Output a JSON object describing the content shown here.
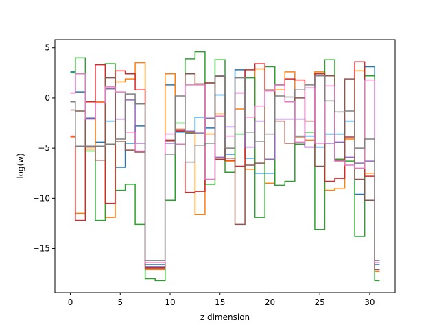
{
  "chart_data": {
    "type": "line",
    "title": "",
    "xlabel": "z dimension",
    "ylabel": "log(w)",
    "xlim": [
      -1.55,
      32.55
    ],
    "ylim": [
      -19.4,
      5.8
    ],
    "xticks": [
      0,
      5,
      10,
      15,
      20,
      25,
      30
    ],
    "yticks": [
      5,
      0,
      -5,
      -10,
      -15
    ],
    "ytick_labels": [
      "5",
      "0",
      "−5",
      "−10",
      "−15"
    ],
    "grid": false,
    "legend": "none",
    "step_style": "mid",
    "x": [
      0,
      1,
      2,
      3,
      4,
      5,
      6,
      7,
      8,
      9,
      10,
      11,
      12,
      13,
      14,
      15,
      16,
      17,
      18,
      19,
      20,
      21,
      22,
      23,
      24,
      25,
      26,
      27,
      28,
      29,
      30,
      31
    ],
    "series": [
      {
        "color": "#1f77b4",
        "values": [
          2.6,
          0.6,
          -2.0,
          -4.4,
          -2.3,
          -6.9,
          -4.5,
          -2.8,
          -16.6,
          -16.6,
          1.3,
          -3.4,
          -3.5,
          -1.9,
          -3.0,
          0.3,
          -5.6,
          2.8,
          -6.0,
          -7.5,
          -7.5,
          1.3,
          -0.4,
          -3.8,
          -3.8,
          -4.9,
          -3.6,
          -3.6,
          -2.3,
          -9.6,
          3.1,
          -16.6
        ]
      },
      {
        "color": "#ff7f0e",
        "values": [
          -3.9,
          -11.5,
          -5.1,
          -0.4,
          -11.9,
          1.6,
          1.9,
          3.5,
          -17.1,
          -17.1,
          2.4,
          -3.1,
          -3.4,
          -11.6,
          -3.6,
          -1.6,
          -6.3,
          -1.1,
          -7.1,
          2.9,
          -8.5,
          0.8,
          2.6,
          -3.9,
          -4.2,
          2.6,
          -9.2,
          -9.0,
          -4.1,
          2.7,
          -7.5,
          -17.3
        ]
      },
      {
        "color": "#2ca02c",
        "values": [
          2.5,
          4.0,
          -5.3,
          -12.2,
          3.4,
          -9.2,
          -8.6,
          -12.6,
          -18.0,
          -18.2,
          -10.2,
          -2.5,
          3.9,
          4.6,
          -8.6,
          3.8,
          -7.4,
          -3.6,
          2.0,
          -11.9,
          3.1,
          -8.7,
          -8.3,
          -4.6,
          -3.4,
          -13.1,
          3.8,
          -6.1,
          -6.3,
          -13.8,
          2.2,
          -18.2
        ]
      },
      {
        "color": "#d62728",
        "values": [
          -3.8,
          -12.2,
          -0.4,
          3.3,
          -10.5,
          2.7,
          2.4,
          0.8,
          -16.9,
          -16.9,
          -4.2,
          -3.3,
          -9.4,
          -9.3,
          1.5,
          -6.1,
          -6.2,
          -6.8,
          2.8,
          3.4,
          0.8,
          1.3,
          1.9,
          1.8,
          -4.9,
          2.4,
          -8.3,
          -8.0,
          -3.9,
          3.6,
          -7.8,
          -17.1
        ]
      },
      {
        "color": "#9467bd",
        "values": [
          0.5,
          2.4,
          -2.1,
          -0.5,
          0.9,
          -2.1,
          -0.2,
          -4.5,
          -16.8,
          -16.8,
          -4.5,
          -3.2,
          -3.3,
          -3.5,
          -2.0,
          -5.9,
          -2.9,
          0.5,
          -4.9,
          -2.3,
          -6.1,
          -2.1,
          -2.1,
          -2.1,
          -4.9,
          2.2,
          -4.5,
          -4.4,
          -5.9,
          -6.5,
          -6.3,
          -17.1
        ]
      },
      {
        "color": "#8c564b",
        "values": [
          -1.2,
          -1.3,
          -4.9,
          -6.2,
          2.0,
          -4.3,
          -5.2,
          -5.4,
          -17.0,
          -17.0,
          -4.3,
          -4.6,
          2.4,
          1.4,
          1.5,
          2.1,
          -6.0,
          -12.6,
          -6.7,
          -6.5,
          0.8,
          -2.3,
          -4.5,
          0.0,
          -2.3,
          -6.8,
          2.2,
          -6.2,
          1.9,
          -8.1,
          -10.2,
          -17.1
        ]
      },
      {
        "color": "#e377c2",
        "values": [
          0.5,
          2.4,
          -2.1,
          -0.5,
          1.1,
          0.6,
          -3.4,
          -5.3,
          -16.4,
          -16.4,
          -3.6,
          -4.6,
          1.3,
          1.3,
          -8.1,
          -1.8,
          -3.8,
          0.5,
          -1.9,
          -0.8,
          0.7,
          1.3,
          -0.4,
          -4.4,
          1.0,
          -4.5,
          1.2,
          -6.3,
          -6.7,
          -7.0,
          1.8,
          -16.4
        ]
      },
      {
        "color": "#7f7f7f",
        "values": [
          -0.4,
          -4.8,
          -4.8,
          -4.8,
          -4.6,
          -4.1,
          0.4,
          -0.6,
          -16.2,
          -16.2,
          -5.6,
          0.2,
          -6.4,
          -4.7,
          -4.5,
          2.2,
          -5.0,
          2.0,
          -3.4,
          -4.3,
          -3.6,
          0.2,
          0.1,
          0.8,
          1.3,
          2.2,
          -0.3,
          -1.4,
          -1.3,
          -5.0,
          -4.1,
          -16.2
        ]
      }
    ]
  }
}
